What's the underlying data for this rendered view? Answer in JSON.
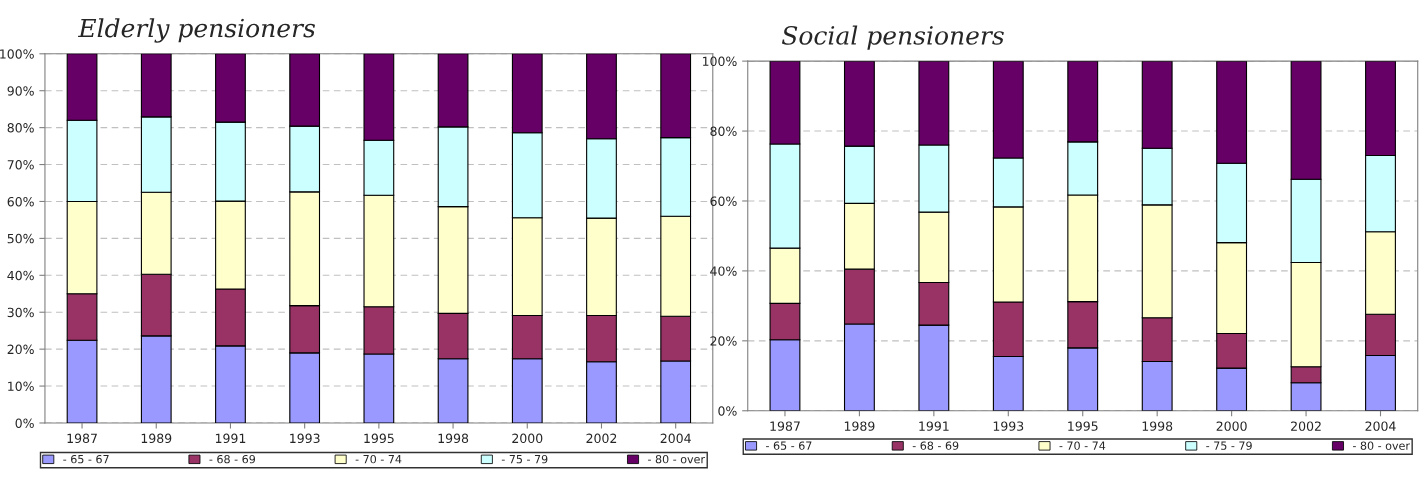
{
  "chart_data": [
    {
      "type": "bar",
      "stacked": true,
      "title": "Elderly pensioners",
      "categories": [
        "1987",
        "1989",
        "1991",
        "1993",
        "1995",
        "1998",
        "2000",
        "2002",
        "2004"
      ],
      "series": [
        {
          "name": "- 65 - 67",
          "color": "#9999ff",
          "values": [
            22.4,
            23.6,
            20.9,
            19,
            18.7,
            17.4,
            17.4,
            16.6,
            16.8
          ]
        },
        {
          "name": "- 68 - 69",
          "color": "#993366",
          "values": [
            12.6,
            16.7,
            15.4,
            12.8,
            12.8,
            12.3,
            11.7,
            12.5,
            12.1
          ]
        },
        {
          "name": "- 70 - 74",
          "color": "#ffffcc",
          "values": [
            25,
            22.2,
            23.8,
            30.8,
            30.2,
            28.9,
            26.5,
            26.4,
            27.1
          ]
        },
        {
          "name": "- 75 - 79",
          "color": "#ccffff",
          "values": [
            22,
            20.4,
            21.4,
            17.8,
            14.9,
            21.6,
            23,
            21.5,
            21.3
          ]
        },
        {
          "name": "- 80 - over",
          "color": "#660066",
          "values": [
            18,
            17.1,
            18.5,
            19.6,
            23.4,
            19.8,
            21.4,
            23,
            22.7
          ]
        }
      ],
      "ylim": [
        0,
        100
      ],
      "yticks": [
        {
          "value": 0,
          "label": "0%"
        },
        {
          "value": 10,
          "label": "10%"
        },
        {
          "value": 20,
          "label": "20%"
        },
        {
          "value": 30,
          "label": "30%"
        },
        {
          "value": 40,
          "label": "40%"
        },
        {
          "value": 50,
          "label": "50%"
        },
        {
          "value": 60,
          "label": "60%"
        },
        {
          "value": 70,
          "label": "70%"
        },
        {
          "value": 80,
          "label": "80%"
        },
        {
          "value": 90,
          "label": "90%"
        },
        {
          "value": 100,
          "label": "100%"
        }
      ],
      "grid": "y",
      "legend": "bottom"
    },
    {
      "type": "bar",
      "stacked": true,
      "title": "Social pensioners",
      "categories": [
        "1987",
        "1989",
        "1991",
        "1993",
        "1995",
        "1998",
        "2000",
        "2002",
        "2004"
      ],
      "series": [
        {
          "name": "- 65 - 67",
          "color": "#9999ff",
          "values": [
            20.3,
            24.8,
            24.5,
            15.5,
            18,
            14.1,
            12.2,
            8,
            15.8
          ]
        },
        {
          "name": "- 68 - 69",
          "color": "#993366",
          "values": [
            10.4,
            15.7,
            12.2,
            15.6,
            13.2,
            12.5,
            9.9,
            4.6,
            11.8
          ]
        },
        {
          "name": "- 70 - 74",
          "color": "#ffffcc",
          "values": [
            15.8,
            18.8,
            20.1,
            27.2,
            30.5,
            32.3,
            26,
            29.8,
            23.6
          ]
        },
        {
          "name": "- 75 - 79",
          "color": "#ccffff",
          "values": [
            29.8,
            16.4,
            19.2,
            14,
            15.2,
            16.2,
            22.7,
            23.8,
            21.8
          ]
        },
        {
          "name": "- 80 - over",
          "color": "#660066",
          "values": [
            23.7,
            24.3,
            24,
            27.7,
            23.1,
            24.9,
            29.2,
            33.8,
            27
          ]
        }
      ],
      "ylim": [
        0,
        100
      ],
      "yticks": [
        {
          "value": 0,
          "label": "0%"
        },
        {
          "value": 20,
          "label": "20%"
        },
        {
          "value": 40,
          "label": "40%"
        },
        {
          "value": 60,
          "label": "60%"
        },
        {
          "value": 80,
          "label": "80%"
        },
        {
          "value": 100,
          "label": "100%"
        }
      ],
      "grid": "y",
      "legend": "bottom"
    }
  ]
}
